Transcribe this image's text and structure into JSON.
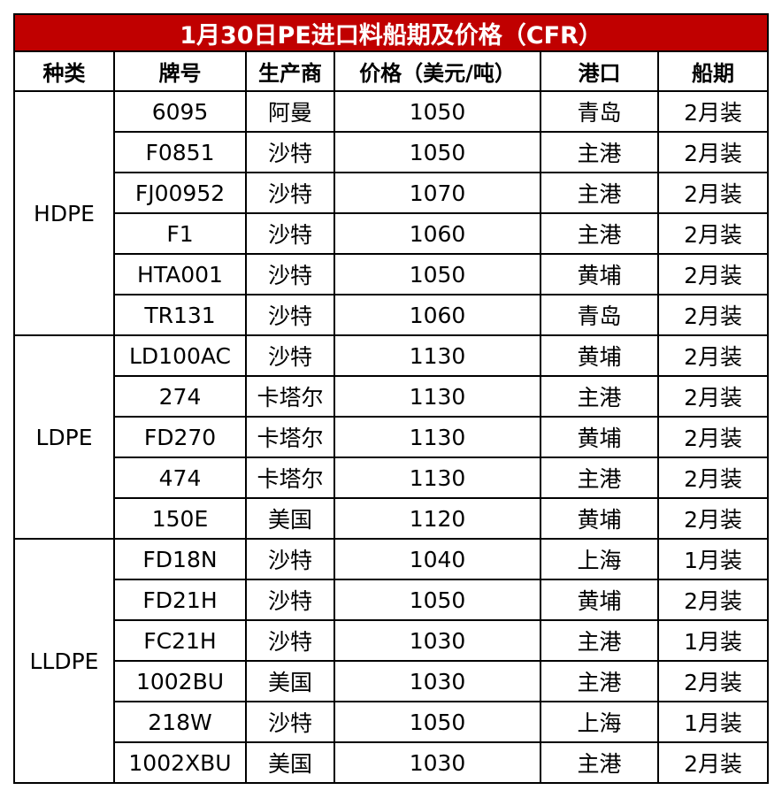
{
  "title": "1月30日PE进口料船期及价格（CFR）",
  "headers": [
    "种类",
    "牌号",
    "生产商",
    "价格（美元/吨）",
    "港口",
    "船期"
  ],
  "groups": [
    {
      "category": "HDPE",
      "rows": [
        {
          "grade": "6095",
          "producer": "阿曼",
          "price": "1050",
          "port": "青岛",
          "ship": "2月装"
        },
        {
          "grade": "F0851",
          "producer": "沙特",
          "price": "1050",
          "port": "主港",
          "ship": "2月装"
        },
        {
          "grade": "FJ00952",
          "producer": "沙特",
          "price": "1070",
          "port": "主港",
          "ship": "2月装"
        },
        {
          "grade": "F1",
          "producer": "沙特",
          "price": "1060",
          "port": "主港",
          "ship": "2月装"
        },
        {
          "grade": "HTA001",
          "producer": "沙特",
          "price": "1050",
          "port": "黄埔",
          "ship": "2月装"
        },
        {
          "grade": "TR131",
          "producer": "沙特",
          "price": "1060",
          "port": "青岛",
          "ship": "2月装"
        }
      ]
    },
    {
      "category": "LDPE",
      "rows": [
        {
          "grade": "LD100AC",
          "producer": "沙特",
          "price": "1130",
          "port": "黄埔",
          "ship": "2月装"
        },
        {
          "grade": "274",
          "producer": "卡塔尔",
          "price": "1130",
          "port": "主港",
          "ship": "2月装"
        },
        {
          "grade": "FD270",
          "producer": "卡塔尔",
          "price": "1130",
          "port": "黄埔",
          "ship": "2月装"
        },
        {
          "grade": "474",
          "producer": "卡塔尔",
          "price": "1130",
          "port": "主港",
          "ship": "2月装"
        },
        {
          "grade": "150E",
          "producer": "美国",
          "price": "1120",
          "port": "黄埔",
          "ship": "2月装"
        }
      ]
    },
    {
      "category": "LLDPE",
      "rows": [
        {
          "grade": "FD18N",
          "producer": "沙特",
          "price": "1040",
          "port": "上海",
          "ship": "1月装"
        },
        {
          "grade": "FD21H",
          "producer": "沙特",
          "price": "1050",
          "port": "黄埔",
          "ship": "2月装"
        },
        {
          "grade": "FC21H",
          "producer": "沙特",
          "price": "1030",
          "port": "主港",
          "ship": "1月装"
        },
        {
          "grade": "1002BU",
          "producer": "美国",
          "price": "1030",
          "port": "主港",
          "ship": "2月装"
        },
        {
          "grade": "218W",
          "producer": "沙特",
          "price": "1050",
          "port": "上海",
          "ship": "1月装"
        },
        {
          "grade": "1002XBU",
          "producer": "美国",
          "price": "1030",
          "port": "主港",
          "ship": "2月装"
        }
      ]
    }
  ],
  "colors": {
    "title_bg": "#c00000",
    "title_fg": "#ffffff",
    "border": "#000000"
  }
}
